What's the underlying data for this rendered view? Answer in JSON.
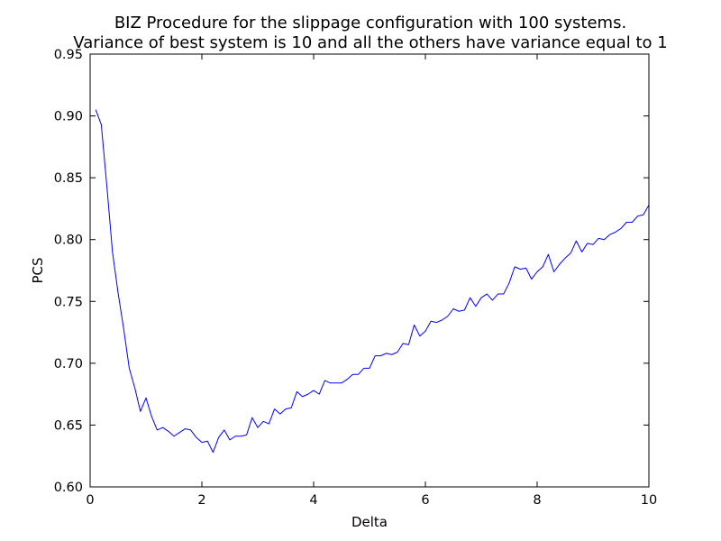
{
  "chart_data": {
    "type": "line",
    "title": "BIZ Procedure for the slippage configuration with 100 systems.",
    "subtitle": "Variance of best system is 10 and all the others have variance equal to 1",
    "xlabel": "Delta",
    "ylabel": "PCS",
    "xlim": [
      0,
      10
    ],
    "ylim": [
      0.6,
      0.95
    ],
    "grid": false,
    "x_ticks": [
      0,
      2,
      4,
      6,
      8,
      10
    ],
    "x_tick_labels": [
      "0",
      "2",
      "4",
      "6",
      "8",
      "10"
    ],
    "y_ticks": [
      0.6,
      0.65,
      0.7,
      0.75,
      0.8,
      0.85,
      0.9,
      0.95
    ],
    "y_tick_labels": [
      "0.60",
      "0.65",
      "0.70",
      "0.75",
      "0.80",
      "0.85",
      "0.90",
      "0.95"
    ],
    "series": [
      {
        "color": "#0000ff",
        "x": [
          0.1,
          0.2,
          0.3,
          0.4,
          0.5,
          0.6,
          0.7,
          0.8,
          0.9,
          1.0,
          1.1,
          1.2,
          1.3,
          1.4,
          1.5,
          1.6,
          1.7,
          1.8,
          1.9,
          2.0,
          2.1,
          2.2,
          2.3,
          2.4,
          2.5,
          2.6,
          2.7,
          2.8,
          2.9,
          3.0,
          3.1,
          3.2,
          3.3,
          3.4,
          3.5,
          3.6,
          3.7,
          3.8,
          3.9,
          4.0,
          4.1,
          4.2,
          4.3,
          4.4,
          4.5,
          4.6,
          4.7,
          4.8,
          4.9,
          5.0,
          5.1,
          5.2,
          5.3,
          5.4,
          5.5,
          5.6,
          5.7,
          5.8,
          5.9,
          6.0,
          6.1,
          6.2,
          6.3,
          6.4,
          6.5,
          6.6,
          6.7,
          6.8,
          6.9,
          7.0,
          7.1,
          7.2,
          7.3,
          7.4,
          7.5,
          7.6,
          7.7,
          7.8,
          7.9,
          8.0,
          8.1,
          8.2,
          8.3,
          8.4,
          8.5,
          8.6,
          8.7,
          8.8,
          8.9,
          9.0,
          9.1,
          9.2,
          9.3,
          9.4,
          9.5,
          9.6,
          9.7,
          9.8,
          9.9,
          10.0
        ],
        "values": [
          0.905,
          0.893,
          0.843,
          0.79,
          0.757,
          0.728,
          0.696,
          0.68,
          0.661,
          0.672,
          0.657,
          0.646,
          0.648,
          0.645,
          0.641,
          0.644,
          0.647,
          0.646,
          0.64,
          0.636,
          0.637,
          0.628,
          0.64,
          0.646,
          0.638,
          0.641,
          0.641,
          0.642,
          0.656,
          0.648,
          0.653,
          0.651,
          0.663,
          0.659,
          0.663,
          0.664,
          0.677,
          0.673,
          0.675,
          0.678,
          0.675,
          0.686,
          0.684,
          0.684,
          0.684,
          0.687,
          0.691,
          0.691,
          0.696,
          0.696,
          0.706,
          0.706,
          0.708,
          0.707,
          0.709,
          0.716,
          0.715,
          0.731,
          0.722,
          0.726,
          0.734,
          0.733,
          0.735,
          0.738,
          0.744,
          0.742,
          0.743,
          0.753,
          0.746,
          0.753,
          0.756,
          0.751,
          0.756,
          0.756,
          0.765,
          0.778,
          0.776,
          0.777,
          0.768,
          0.774,
          0.778,
          0.788,
          0.774,
          0.78,
          0.785,
          0.789,
          0.799,
          0.79,
          0.797,
          0.796,
          0.801,
          0.8,
          0.804,
          0.806,
          0.809,
          0.814,
          0.814,
          0.819,
          0.82,
          0.828
        ]
      }
    ]
  }
}
